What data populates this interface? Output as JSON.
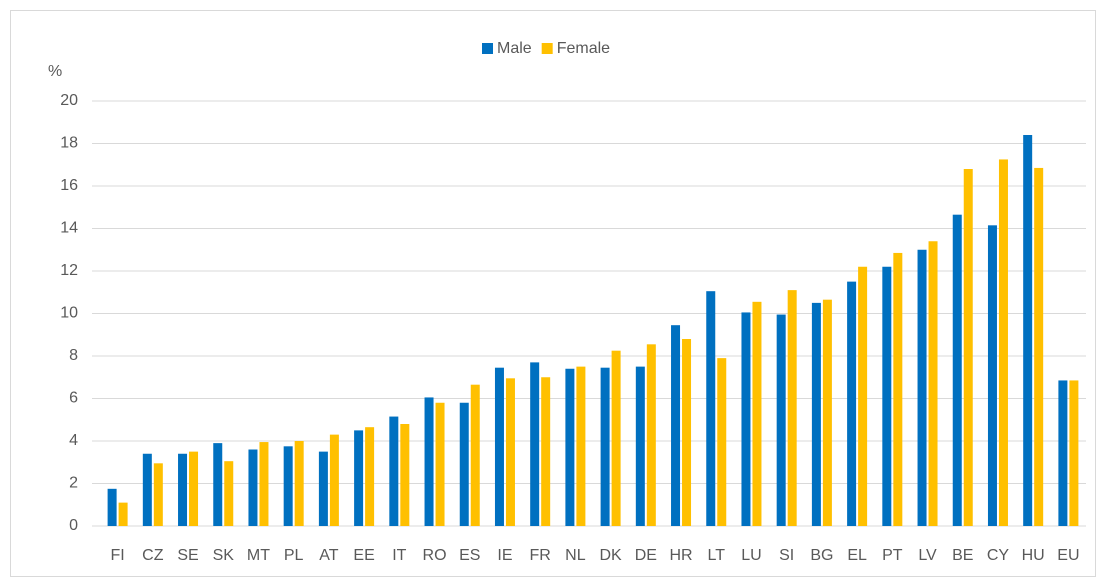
{
  "chart_data": {
    "type": "bar",
    "y_label": "%",
    "categories": [
      "FI",
      "CZ",
      "SE",
      "SK",
      "MT",
      "PL",
      "AT",
      "EE",
      "IT",
      "RO",
      "ES",
      "IE",
      "FR",
      "NL",
      "DK",
      "DE",
      "HR",
      "LT",
      "LU",
      "SI",
      "BG",
      "EL",
      "PT",
      "LV",
      "BE",
      "CY",
      "HU",
      "EU"
    ],
    "series": [
      {
        "name": "Male",
        "color": "#0070C0",
        "values": [
          1.75,
          3.4,
          3.4,
          3.9,
          3.6,
          3.75,
          3.5,
          4.5,
          5.15,
          6.05,
          5.8,
          7.45,
          7.7,
          7.4,
          7.45,
          7.5,
          9.45,
          11.05,
          10.05,
          9.95,
          10.5,
          11.5,
          12.2,
          13.0,
          14.65,
          14.15,
          18.4,
          6.85
        ]
      },
      {
        "name": "Female",
        "color": "#FFC000",
        "values": [
          1.1,
          2.95,
          3.5,
          3.05,
          3.95,
          4.0,
          4.3,
          4.65,
          4.8,
          5.8,
          6.65,
          6.95,
          7.0,
          7.5,
          8.25,
          8.55,
          8.8,
          7.9,
          10.55,
          11.1,
          10.65,
          12.2,
          12.85,
          13.4,
          16.8,
          17.25,
          16.85,
          6.85
        ]
      }
    ],
    "ylim": [
      0,
      20
    ],
    "yticks": [
      0,
      2,
      4,
      6,
      8,
      10,
      12,
      14,
      16,
      18,
      20
    ],
    "grid": true,
    "legend": "top"
  }
}
